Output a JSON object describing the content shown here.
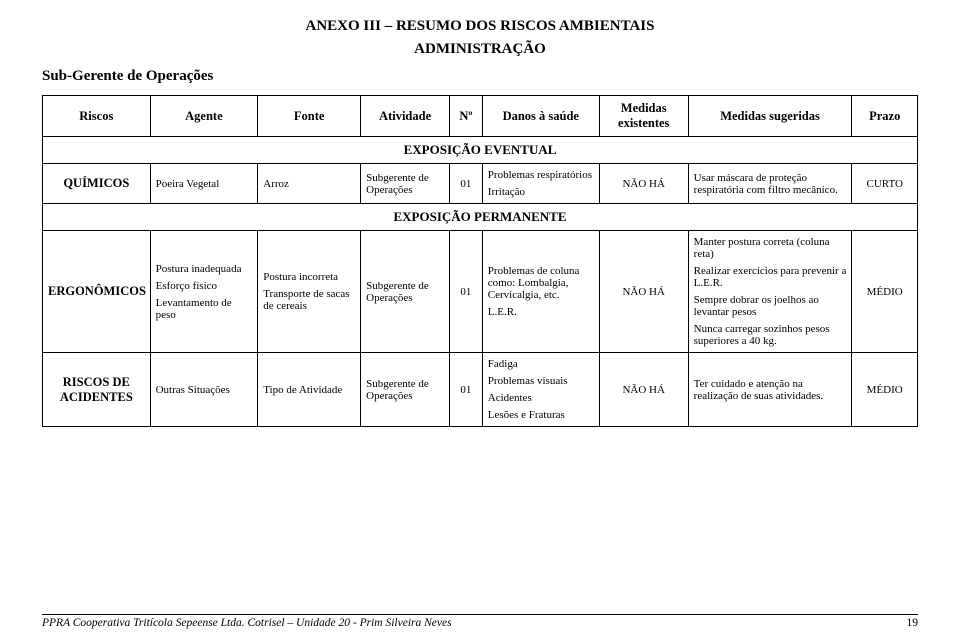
{
  "titles": {
    "main": "ANEXO III – RESUMO DOS RISCOS AMBIENTAIS",
    "admin": "ADMINISTRAÇÃO",
    "role": "Sub-Gerente de Operações"
  },
  "headers": {
    "riscos": "Riscos",
    "agente": "Agente",
    "fonte": "Fonte",
    "atividade": "Atividade",
    "no": "Nº",
    "danos": "Danos à saúde",
    "medex": "Medidas existentes",
    "medsug": "Medidas sugeridas",
    "prazo": "Prazo"
  },
  "sections": {
    "eventual": "EXPOSIÇÃO EVENTUAL",
    "permanente": "EXPOSIÇÃO PERMANENTE"
  },
  "quimicos": {
    "label": "QUÍMICOS",
    "agente": "Poeira Vegetal",
    "fonte": "Arroz",
    "atividade": "Subgerente de Operações",
    "no": "01",
    "danos1": "Problemas respiratórios",
    "danos2": "Irritação",
    "medex": "NÃO HÁ",
    "medsug": "Usar máscara de proteção respiratória com filtro mecânico.",
    "prazo": "CURTO"
  },
  "ergonomicos": {
    "label": "ERGONÔMICOS",
    "agente1": "Postura inadequada",
    "agente2": "Esforço físico",
    "agente3": "Levantamento de peso",
    "fonte1": "Postura  incorreta",
    "fonte2": "Transporte de sacas de cereais",
    "atividade": "Subgerente de Operações",
    "no": "01",
    "danos1": "Problemas de coluna como: Lombalgia, Cervicalgia, etc.",
    "danos2": "L.E.R.",
    "medex": "NÃO  HÁ",
    "medsug1": "Manter  postura correta (coluna  reta)",
    "medsug2": "Realizar exercícios para prevenir a L.E.R.",
    "medsug3": "Sempre dobrar os joelhos ao levantar pesos",
    "medsug4": "Nunca carregar sozinhos pesos superiores a 40 kg.",
    "prazo": "MÉDIO"
  },
  "acidentes": {
    "label": "RISCOS DE ACIDENTES",
    "agente": "Outras Situações",
    "fonte": "Tipo de Atividade",
    "atividade": "Subgerente de Operações",
    "no": "01",
    "danos1": "Fadiga",
    "danos2": "Problemas visuais",
    "danos3": "Acidentes",
    "danos4": "Lesões e Fraturas",
    "medex": "NÃO HÁ",
    "medsug": "Ter cuidado e atenção na realização de suas atividades.",
    "prazo": "MÉDIO"
  },
  "footer": {
    "left": "PPRA Cooperativa Tritícola Sepeense Ltda.  Cotrisel – Unidade 20 - Prim Silveira Neves",
    "page": "19"
  }
}
